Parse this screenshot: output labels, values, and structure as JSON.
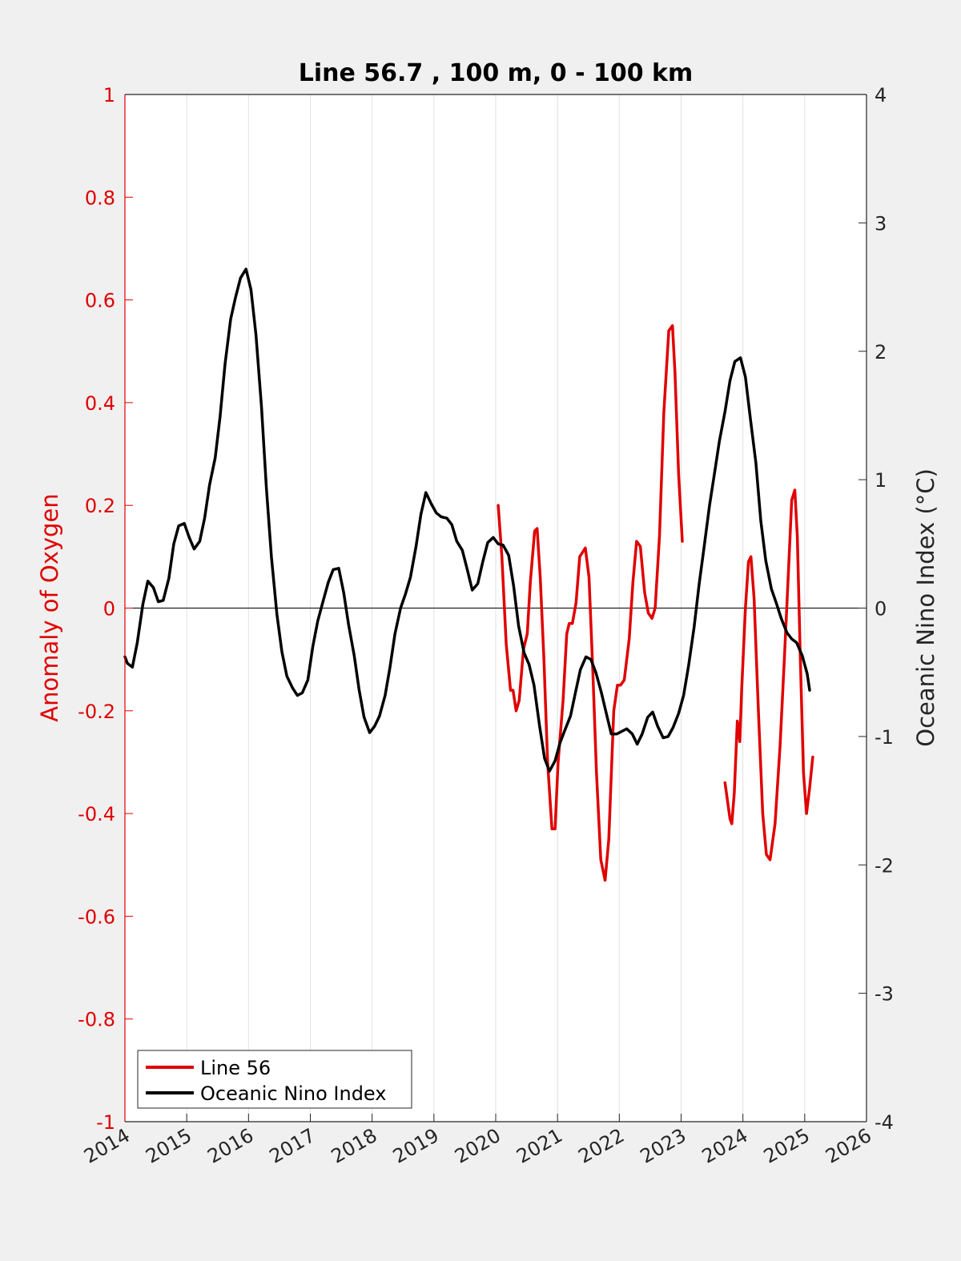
{
  "colors": {
    "figure_bg": "#f0f0f0",
    "axes_bg": "#ffffff",
    "line56": "#e00000",
    "oni": "#000000",
    "grid": "#e1e1e1",
    "left_axis": "#e00000",
    "right_axis": "#262626"
  },
  "chart_data": {
    "type": "line",
    "title": "Line 56.7 , 100 m, 0 - 100 km",
    "xlabel": "",
    "ylabel_left": "Anomaly of Oxygen",
    "ylabel_right": "Oceanic Nino Index (°C)",
    "xlim": [
      2014,
      2026
    ],
    "ylim_left": [
      -1,
      1
    ],
    "ylim_right": [
      -4,
      4
    ],
    "x_ticks": [
      "2014",
      "2015",
      "2016",
      "2017",
      "2018",
      "2019",
      "2020",
      "2021",
      "2022",
      "2023",
      "2024",
      "2025",
      "2026"
    ],
    "y_left_ticks": [
      "1",
      "0.8",
      "0.6",
      "0.4",
      "0.2",
      "0",
      "-0.2",
      "-0.4",
      "-0.6",
      "-0.8",
      "-1"
    ],
    "y_right_ticks": [
      "4",
      "3",
      "2",
      "1",
      "0",
      "-1",
      "-2",
      "-3",
      "-4"
    ],
    "grid_x": true,
    "grid_y": false,
    "zero_line": true,
    "legend_position": "bottom-left",
    "legend": [
      "Line 56",
      "Oceanic Nino Index"
    ],
    "series": [
      {
        "name": "Line 56",
        "axis": "left",
        "color": "#e00000",
        "segments": [
          [
            [
              2020.04,
              0.2
            ],
            [
              2020.1,
              0.1
            ],
            [
              2020.17,
              -0.07
            ],
            [
              2020.24,
              -0.16
            ],
            [
              2020.28,
              -0.16
            ],
            [
              2020.33,
              -0.2
            ],
            [
              2020.38,
              -0.18
            ],
            [
              2020.45,
              -0.08
            ],
            [
              2020.51,
              -0.05
            ],
            [
              2020.56,
              0.05
            ],
            [
              2020.63,
              0.15
            ],
            [
              2020.67,
              0.155
            ],
            [
              2020.72,
              0.06
            ],
            [
              2020.78,
              -0.1
            ],
            [
              2020.84,
              -0.3
            ],
            [
              2020.91,
              -0.43
            ],
            [
              2020.96,
              -0.43
            ],
            [
              2021.01,
              -0.3
            ],
            [
              2021.09,
              -0.18
            ],
            [
              2021.15,
              -0.05
            ],
            [
              2021.19,
              -0.03
            ],
            [
              2021.24,
              -0.03
            ],
            [
              2021.3,
              0.01
            ],
            [
              2021.36,
              0.1
            ],
            [
              2021.45,
              0.117
            ],
            [
              2021.51,
              0.06
            ],
            [
              2021.57,
              -0.12
            ],
            [
              2021.63,
              -0.32
            ],
            [
              2021.7,
              -0.49
            ],
            [
              2021.77,
              -0.53
            ],
            [
              2021.83,
              -0.45
            ],
            [
              2021.91,
              -0.2
            ],
            [
              2021.97,
              -0.15
            ],
            [
              2022.02,
              -0.15
            ],
            [
              2022.08,
              -0.14
            ],
            [
              2022.16,
              -0.06
            ],
            [
              2022.22,
              0.05
            ],
            [
              2022.28,
              0.13
            ],
            [
              2022.34,
              0.12
            ],
            [
              2022.41,
              0.03
            ],
            [
              2022.47,
              -0.01
            ],
            [
              2022.53,
              -0.02
            ],
            [
              2022.58,
              0.0
            ],
            [
              2022.65,
              0.14
            ],
            [
              2022.72,
              0.38
            ],
            [
              2022.8,
              0.54
            ],
            [
              2022.86,
              0.55
            ],
            [
              2022.9,
              0.46
            ],
            [
              2022.96,
              0.26
            ],
            [
              2023.02,
              0.13
            ]
          ],
          [
            [
              2023.71,
              -0.34
            ],
            [
              2023.79,
              -0.41
            ],
            [
              2023.82,
              -0.42
            ],
            [
              2023.86,
              -0.36
            ],
            [
              2023.91,
              -0.22
            ],
            [
              2023.95,
              -0.26
            ],
            [
              2023.98,
              -0.16
            ],
            [
              2024.04,
              0.0
            ],
            [
              2024.09,
              0.09
            ],
            [
              2024.13,
              0.1
            ],
            [
              2024.18,
              0.02
            ],
            [
              2024.25,
              -0.2
            ],
            [
              2024.32,
              -0.4
            ],
            [
              2024.38,
              -0.48
            ],
            [
              2024.44,
              -0.49
            ],
            [
              2024.52,
              -0.42
            ],
            [
              2024.6,
              -0.27
            ],
            [
              2024.67,
              -0.1
            ],
            [
              2024.74,
              0.08
            ],
            [
              2024.79,
              0.21
            ],
            [
              2024.84,
              0.23
            ],
            [
              2024.88,
              0.14
            ],
            [
              2024.93,
              -0.1
            ],
            [
              2024.98,
              -0.32
            ],
            [
              2025.03,
              -0.4
            ],
            [
              2025.08,
              -0.35
            ],
            [
              2025.13,
              -0.29
            ]
          ]
        ]
      },
      {
        "name": "Oceanic Nino Index",
        "axis": "right",
        "color": "#000000",
        "points": [
          [
            2014.0,
            -0.38
          ],
          [
            2014.04,
            -0.43
          ],
          [
            2014.12,
            -0.46
          ],
          [
            2014.2,
            -0.27
          ],
          [
            2014.29,
            0.03
          ],
          [
            2014.37,
            0.21
          ],
          [
            2014.46,
            0.16
          ],
          [
            2014.54,
            0.05
          ],
          [
            2014.62,
            0.06
          ],
          [
            2014.71,
            0.23
          ],
          [
            2014.79,
            0.5
          ],
          [
            2014.87,
            0.64
          ],
          [
            2014.96,
            0.66
          ],
          [
            2015.04,
            0.55
          ],
          [
            2015.12,
            0.46
          ],
          [
            2015.21,
            0.52
          ],
          [
            2015.29,
            0.7
          ],
          [
            2015.37,
            0.96
          ],
          [
            2015.46,
            1.17
          ],
          [
            2015.54,
            1.49
          ],
          [
            2015.62,
            1.9
          ],
          [
            2015.71,
            2.25
          ],
          [
            2015.79,
            2.42
          ],
          [
            2015.87,
            2.57
          ],
          [
            2015.96,
            2.64
          ],
          [
            2016.04,
            2.48
          ],
          [
            2016.12,
            2.13
          ],
          [
            2016.21,
            1.57
          ],
          [
            2016.29,
            0.93
          ],
          [
            2016.37,
            0.4
          ],
          [
            2016.46,
            -0.05
          ],
          [
            2016.54,
            -0.34
          ],
          [
            2016.62,
            -0.53
          ],
          [
            2016.71,
            -0.62
          ],
          [
            2016.79,
            -0.68
          ],
          [
            2016.87,
            -0.66
          ],
          [
            2016.96,
            -0.56
          ],
          [
            2017.04,
            -0.3
          ],
          [
            2017.12,
            -0.1
          ],
          [
            2017.21,
            0.06
          ],
          [
            2017.29,
            0.2
          ],
          [
            2017.37,
            0.3
          ],
          [
            2017.46,
            0.31
          ],
          [
            2017.54,
            0.12
          ],
          [
            2017.62,
            -0.13
          ],
          [
            2017.71,
            -0.37
          ],
          [
            2017.79,
            -0.64
          ],
          [
            2017.87,
            -0.85
          ],
          [
            2017.96,
            -0.97
          ],
          [
            2018.04,
            -0.92
          ],
          [
            2018.12,
            -0.84
          ],
          [
            2018.21,
            -0.68
          ],
          [
            2018.29,
            -0.46
          ],
          [
            2018.37,
            -0.2
          ],
          [
            2018.46,
            0.0
          ],
          [
            2018.54,
            0.11
          ],
          [
            2018.62,
            0.24
          ],
          [
            2018.71,
            0.48
          ],
          [
            2018.79,
            0.73
          ],
          [
            2018.87,
            0.9
          ],
          [
            2018.96,
            0.81
          ],
          [
            2019.04,
            0.74
          ],
          [
            2019.12,
            0.71
          ],
          [
            2019.21,
            0.7
          ],
          [
            2019.29,
            0.65
          ],
          [
            2019.37,
            0.52
          ],
          [
            2019.46,
            0.45
          ],
          [
            2019.54,
            0.3
          ],
          [
            2019.62,
            0.14
          ],
          [
            2019.71,
            0.19
          ],
          [
            2019.79,
            0.36
          ],
          [
            2019.87,
            0.51
          ],
          [
            2019.96,
            0.55
          ],
          [
            2020.04,
            0.5
          ],
          [
            2020.12,
            0.49
          ],
          [
            2020.21,
            0.41
          ],
          [
            2020.29,
            0.17
          ],
          [
            2020.37,
            -0.14
          ],
          [
            2020.46,
            -0.35
          ],
          [
            2020.54,
            -0.44
          ],
          [
            2020.62,
            -0.6
          ],
          [
            2020.71,
            -0.92
          ],
          [
            2020.79,
            -1.17
          ],
          [
            2020.87,
            -1.27
          ],
          [
            2020.96,
            -1.19
          ],
          [
            2021.04,
            -1.05
          ],
          [
            2021.12,
            -0.95
          ],
          [
            2021.21,
            -0.84
          ],
          [
            2021.29,
            -0.66
          ],
          [
            2021.37,
            -0.48
          ],
          [
            2021.46,
            -0.38
          ],
          [
            2021.54,
            -0.4
          ],
          [
            2021.62,
            -0.5
          ],
          [
            2021.71,
            -0.66
          ],
          [
            2021.79,
            -0.82
          ],
          [
            2021.87,
            -0.98
          ],
          [
            2021.96,
            -0.98
          ],
          [
            2022.04,
            -0.96
          ],
          [
            2022.12,
            -0.94
          ],
          [
            2022.21,
            -0.98
          ],
          [
            2022.29,
            -1.06
          ],
          [
            2022.37,
            -0.98
          ],
          [
            2022.46,
            -0.85
          ],
          [
            2022.54,
            -0.81
          ],
          [
            2022.62,
            -0.92
          ],
          [
            2022.71,
            -1.01
          ],
          [
            2022.79,
            -1.0
          ],
          [
            2022.87,
            -0.93
          ],
          [
            2022.96,
            -0.82
          ],
          [
            2023.04,
            -0.68
          ],
          [
            2023.12,
            -0.45
          ],
          [
            2023.21,
            -0.15
          ],
          [
            2023.29,
            0.18
          ],
          [
            2023.37,
            0.47
          ],
          [
            2023.46,
            0.8
          ],
          [
            2023.54,
            1.05
          ],
          [
            2023.62,
            1.3
          ],
          [
            2023.71,
            1.53
          ],
          [
            2023.79,
            1.77
          ],
          [
            2023.87,
            1.92
          ],
          [
            2023.96,
            1.95
          ],
          [
            2024.04,
            1.8
          ],
          [
            2024.12,
            1.48
          ],
          [
            2024.21,
            1.13
          ],
          [
            2024.29,
            0.68
          ],
          [
            2024.37,
            0.37
          ],
          [
            2024.46,
            0.15
          ],
          [
            2024.54,
            0.04
          ],
          [
            2024.62,
            -0.08
          ],
          [
            2024.71,
            -0.19
          ],
          [
            2024.79,
            -0.24
          ],
          [
            2024.87,
            -0.27
          ],
          [
            2024.96,
            -0.37
          ],
          [
            2025.04,
            -0.51
          ],
          [
            2025.08,
            -0.64
          ]
        ]
      }
    ]
  }
}
